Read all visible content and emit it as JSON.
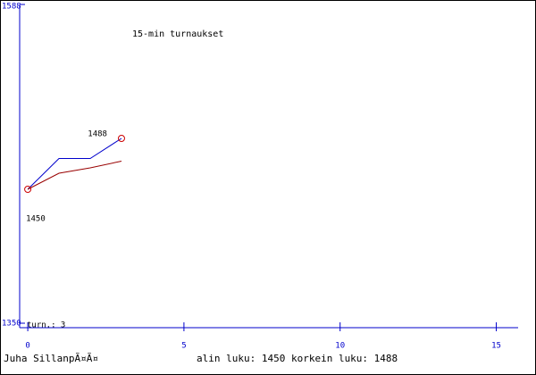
{
  "chart_data": {
    "type": "line",
    "title": "15-min turnaukset",
    "x": [
      0,
      1,
      2,
      3
    ],
    "series": [
      {
        "color": "#0000cc",
        "values": [
          1450,
          1473,
          1473,
          1488
        ]
      },
      {
        "color": "#990000",
        "values": [
          1450,
          1462,
          1466,
          1471
        ]
      }
    ],
    "xlim": [
      -0.26,
      15.7
    ],
    "xticks": [
      0,
      5,
      10,
      15
    ],
    "ylim": [
      1350,
      1588
    ],
    "yticks": [
      1350,
      1588
    ],
    "max_label": 1488,
    "min_label": 1450,
    "games_label": "turn.: 3",
    "player": "Juha SillanpÃ¤Ã¤",
    "summary": "alin luku: 1450  korkein luku: 1488"
  }
}
